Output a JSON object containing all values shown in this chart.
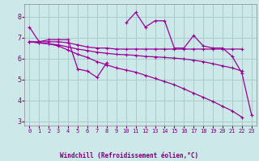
{
  "x": [
    0,
    1,
    2,
    3,
    4,
    5,
    6,
    7,
    8,
    9,
    10,
    11,
    12,
    13,
    14,
    15,
    16,
    17,
    18,
    19,
    20,
    21,
    22,
    23
  ],
  "line1": [
    7.5,
    6.8,
    6.9,
    6.9,
    6.9,
    5.5,
    5.4,
    5.1,
    5.8,
    null,
    7.7,
    8.2,
    7.5,
    7.8,
    7.8,
    6.5,
    6.5,
    7.1,
    6.6,
    6.5,
    6.5,
    6.1,
    5.3,
    3.3
  ],
  "line2": [
    6.8,
    6.8,
    6.8,
    6.8,
    6.75,
    6.65,
    6.55,
    6.5,
    6.5,
    6.45,
    6.45,
    6.45,
    6.45,
    6.45,
    6.45,
    6.45,
    6.45,
    6.45,
    6.45,
    6.45,
    6.45,
    6.45,
    6.45,
    null
  ],
  "line3": [
    6.8,
    6.75,
    6.7,
    6.65,
    6.55,
    6.45,
    6.38,
    6.3,
    6.25,
    6.2,
    6.18,
    6.15,
    6.1,
    6.08,
    6.05,
    6.02,
    5.98,
    5.92,
    5.85,
    5.75,
    5.65,
    5.55,
    5.4,
    null
  ],
  "line4": [
    6.8,
    6.75,
    6.7,
    6.6,
    6.4,
    6.2,
    6.05,
    5.85,
    5.7,
    5.55,
    5.45,
    5.35,
    5.2,
    5.05,
    4.9,
    4.75,
    4.55,
    4.35,
    4.15,
    3.95,
    3.72,
    3.5,
    3.2,
    null
  ],
  "bg_color": "#cce8e8",
  "grid_color": "#aacccc",
  "line_color": "#990099",
  "xlabel": "Windchill (Refroidissement éolien,°C)",
  "ylim": [
    2.8,
    8.6
  ],
  "xlim": [
    -0.5,
    23.5
  ],
  "yticks": [
    3,
    4,
    5,
    6,
    7,
    8
  ],
  "xticks": [
    0,
    1,
    2,
    3,
    4,
    5,
    6,
    7,
    8,
    9,
    10,
    11,
    12,
    13,
    14,
    15,
    16,
    17,
    18,
    19,
    20,
    21,
    22,
    23
  ]
}
